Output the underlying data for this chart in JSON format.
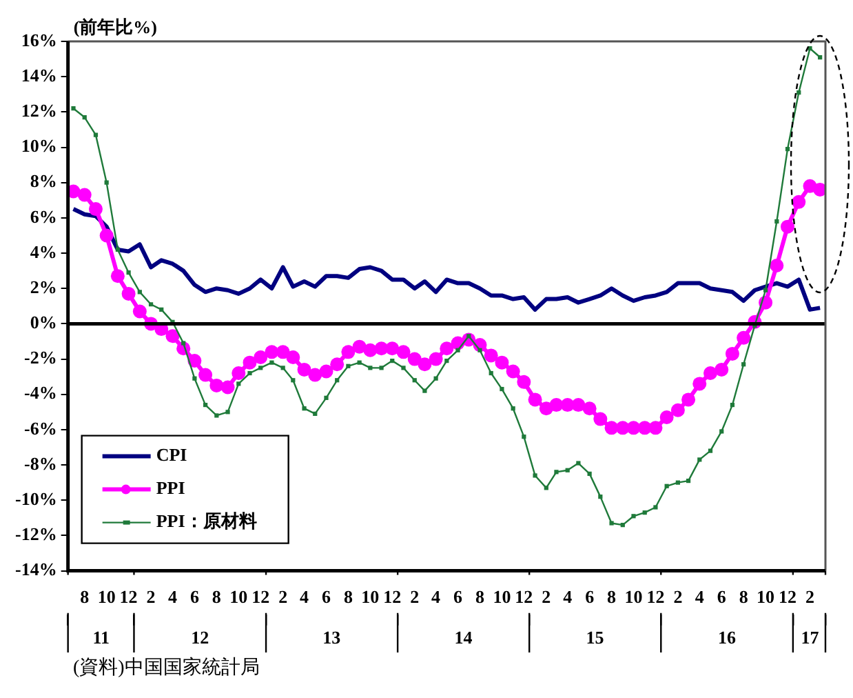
{
  "chart_data": {
    "type": "line",
    "ylabel": "(前年比%)",
    "annotations": [
      "(資料)中国国家統計局"
    ],
    "x": [
      "2011-07",
      "2011-08",
      "2011-09",
      "2011-10",
      "2011-11",
      "2011-12",
      "2012-01",
      "2012-02",
      "2012-03",
      "2012-04",
      "2012-05",
      "2012-06",
      "2012-07",
      "2012-08",
      "2012-09",
      "2012-10",
      "2012-11",
      "2012-12",
      "2013-01",
      "2013-02",
      "2013-03",
      "2013-04",
      "2013-05",
      "2013-06",
      "2013-07",
      "2013-08",
      "2013-09",
      "2013-10",
      "2013-11",
      "2013-12",
      "2014-01",
      "2014-02",
      "2014-03",
      "2014-04",
      "2014-05",
      "2014-06",
      "2014-07",
      "2014-08",
      "2014-09",
      "2014-10",
      "2014-11",
      "2014-12",
      "2015-01",
      "2015-02",
      "2015-03",
      "2015-04",
      "2015-05",
      "2015-06",
      "2015-07",
      "2015-08",
      "2015-09",
      "2015-10",
      "2015-11",
      "2015-12",
      "2016-01",
      "2016-02",
      "2016-03",
      "2016-04",
      "2016-05",
      "2016-06",
      "2016-07",
      "2016-08",
      "2016-09",
      "2016-10",
      "2016-11",
      "2016-12",
      "2017-01",
      "2017-02",
      "2017-03"
    ],
    "series": [
      {
        "name": "CPI",
        "color": "#000080",
        "marker": "none",
        "values": [
          6.5,
          6.2,
          6.1,
          5.5,
          4.2,
          4.1,
          4.5,
          3.2,
          3.6,
          3.4,
          3.0,
          2.2,
          1.8,
          2.0,
          1.9,
          1.7,
          2.0,
          2.5,
          2.0,
          3.2,
          2.1,
          2.4,
          2.1,
          2.7,
          2.7,
          2.6,
          3.1,
          3.2,
          3.0,
          2.5,
          2.5,
          2.0,
          2.4,
          1.8,
          2.5,
          2.3,
          2.3,
          2.0,
          1.6,
          1.6,
          1.4,
          1.5,
          0.8,
          1.4,
          1.4,
          1.5,
          1.2,
          1.4,
          1.6,
          2.0,
          1.6,
          1.3,
          1.5,
          1.6,
          1.8,
          2.3,
          2.3,
          2.3,
          2.0,
          1.9,
          1.8,
          1.3,
          1.9,
          2.1,
          2.3,
          2.1,
          2.5,
          0.8,
          0.9
        ]
      },
      {
        "name": "PPI",
        "color": "#ff00ff",
        "marker": "circle",
        "values": [
          7.5,
          7.3,
          6.5,
          5.0,
          2.7,
          1.7,
          0.7,
          0.0,
          -0.3,
          -0.7,
          -1.4,
          -2.1,
          -2.9,
          -3.5,
          -3.6,
          -2.8,
          -2.2,
          -1.9,
          -1.6,
          -1.6,
          -1.9,
          -2.6,
          -2.9,
          -2.7,
          -2.3,
          -1.6,
          -1.3,
          -1.5,
          -1.4,
          -1.4,
          -1.6,
          -2.0,
          -2.3,
          -2.0,
          -1.4,
          -1.1,
          -0.9,
          -1.2,
          -1.8,
          -2.2,
          -2.7,
          -3.3,
          -4.3,
          -4.8,
          -4.6,
          -4.6,
          -4.6,
          -4.8,
          -5.4,
          -5.9,
          -5.9,
          -5.9,
          -5.9,
          -5.9,
          -5.3,
          -4.9,
          -4.3,
          -3.4,
          -2.8,
          -2.6,
          -1.7,
          -0.8,
          0.1,
          1.2,
          3.3,
          5.5,
          6.9,
          7.8,
          7.6
        ]
      },
      {
        "name": "PPI：原材料",
        "color": "#1f7a3a",
        "marker": "square",
        "values": [
          12.2,
          11.7,
          10.7,
          8.0,
          4.2,
          2.9,
          1.8,
          1.1,
          0.8,
          0.1,
          -1.1,
          -3.1,
          -4.6,
          -5.2,
          -5.0,
          -3.4,
          -2.8,
          -2.5,
          -2.2,
          -2.5,
          -3.2,
          -4.8,
          -5.1,
          -4.2,
          -3.2,
          -2.4,
          -2.2,
          -2.5,
          -2.5,
          -2.1,
          -2.5,
          -3.2,
          -3.8,
          -3.1,
          -2.1,
          -1.5,
          -0.7,
          -1.5,
          -2.8,
          -3.7,
          -4.8,
          -6.4,
          -8.6,
          -9.3,
          -8.4,
          -8.3,
          -7.9,
          -8.5,
          -9.8,
          -11.3,
          -11.4,
          -10.9,
          -10.7,
          -10.4,
          -9.2,
          -9.0,
          -8.9,
          -7.7,
          -7.2,
          -6.1,
          -4.6,
          -2.3,
          -0.1,
          1.9,
          5.8,
          9.9,
          13.1,
          15.6,
          15.1
        ]
      }
    ],
    "xlim": [
      "2011-06-16",
      "2017-03-16"
    ],
    "xticks": [
      {
        "value": "2011-08",
        "label": "8"
      },
      {
        "value": "2011-10",
        "label": "10"
      },
      {
        "value": "2011-12",
        "label": "12"
      },
      {
        "value": "2012-02",
        "label": "2"
      },
      {
        "value": "2012-04",
        "label": "4"
      },
      {
        "value": "2012-06",
        "label": "6"
      },
      {
        "value": "2012-08",
        "label": "8"
      },
      {
        "value": "2012-10",
        "label": "10"
      },
      {
        "value": "2012-12",
        "label": "12"
      },
      {
        "value": "2013-02",
        "label": "2"
      },
      {
        "value": "2013-04",
        "label": "4"
      },
      {
        "value": "2013-06",
        "label": "6"
      },
      {
        "value": "2013-08",
        "label": "8"
      },
      {
        "value": "2013-10",
        "label": "10"
      },
      {
        "value": "2013-12",
        "label": "12"
      },
      {
        "value": "2014-02",
        "label": "2"
      },
      {
        "value": "2014-04",
        "label": "4"
      },
      {
        "value": "2014-06",
        "label": "6"
      },
      {
        "value": "2014-08",
        "label": "8"
      },
      {
        "value": "2014-10",
        "label": "10"
      },
      {
        "value": "2014-12",
        "label": "12"
      },
      {
        "value": "2015-02",
        "label": "2"
      },
      {
        "value": "2015-04",
        "label": "4"
      },
      {
        "value": "2015-06",
        "label": "6"
      },
      {
        "value": "2015-08",
        "label": "8"
      },
      {
        "value": "2015-10",
        "label": "10"
      },
      {
        "value": "2015-12",
        "label": "12"
      },
      {
        "value": "2016-02",
        "label": "2"
      },
      {
        "value": "2016-04",
        "label": "4"
      },
      {
        "value": "2016-06",
        "label": "6"
      },
      {
        "value": "2016-08",
        "label": "8"
      },
      {
        "value": "2016-10",
        "label": "10"
      },
      {
        "value": "2016-12",
        "label": "12"
      },
      {
        "value": "2017-02",
        "label": "2"
      }
    ],
    "x2lim": [
      "2011-06-16",
      "2017-03-16"
    ],
    "x2ticks": [
      {
        "value": "2011-06-16",
        "label": null
      },
      {
        "value": "2011-09-16",
        "label": "11"
      },
      {
        "value": "2011-12-16",
        "label": null
      },
      {
        "value": "2012-06-16",
        "label": "12"
      },
      {
        "value": "2012-12-16",
        "label": null
      },
      {
        "value": "2013-06-16",
        "label": "13"
      },
      {
        "value": "2013-12-16",
        "label": null
      },
      {
        "value": "2014-06-16",
        "label": "14"
      },
      {
        "value": "2014-12-16",
        "label": null
      },
      {
        "value": "2015-06-16",
        "label": "15"
      },
      {
        "value": "2015-12-16",
        "label": null
      },
      {
        "value": "2016-06-16",
        "label": "16"
      },
      {
        "value": "2016-12-16",
        "label": null
      },
      {
        "value": "2017-02",
        "label": "17"
      },
      {
        "value": "2017-03-16",
        "label": null
      }
    ],
    "ylim": [
      -14,
      16
    ],
    "yticks": [
      {
        "value": -14,
        "label": "-14%"
      },
      {
        "value": -12,
        "label": "-12%"
      },
      {
        "value": -10,
        "label": "-10%"
      },
      {
        "value": -8,
        "label": "-8%"
      },
      {
        "value": -6,
        "label": "-6%"
      },
      {
        "value": -4,
        "label": "-4%"
      },
      {
        "value": -2,
        "label": "-2%"
      },
      {
        "value": 0,
        "label": "0%"
      },
      {
        "value": 2,
        "label": "2%"
      },
      {
        "value": 4,
        "label": "4%"
      },
      {
        "value": 6,
        "label": "6%"
      },
      {
        "value": 8,
        "label": "8%"
      },
      {
        "value": 10,
        "label": "10%"
      },
      {
        "value": 12,
        "label": "12%"
      },
      {
        "value": 14,
        "label": "14%"
      },
      {
        "value": 16,
        "label": "16%"
      }
    ],
    "ref_lines": [
      {
        "axis": "y",
        "value": 0,
        "color": "#000000"
      }
    ],
    "grid": false,
    "legend": "bottom left",
    "line_style": "solid"
  }
}
